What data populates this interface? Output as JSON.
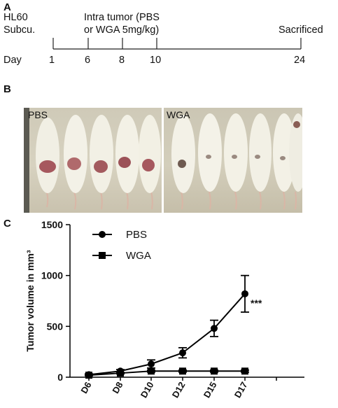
{
  "panel_a": {
    "letter": "A",
    "cell_line": "HL60",
    "route": "Subcu.",
    "treatment_line1": "Intra tumor (PBS",
    "treatment_line2": "or WGA 5mg/kg)",
    "day_label": "Day",
    "endpoint": "Sacrificed",
    "ticks": [
      "1",
      "6",
      "8",
      "10",
      "24"
    ]
  },
  "panel_b": {
    "letter": "B",
    "left_label": "PBS",
    "right_label": "WGA",
    "mice_per_group": 5,
    "tumor_colors": {
      "pbs": "#a6585e",
      "wga": "#6e5a50"
    }
  },
  "panel_c": {
    "letter": "C",
    "significance": "***"
  },
  "chart_data": {
    "type": "line",
    "title": "",
    "xlabel": "",
    "ylabel": "Tumor volume in mm³",
    "categories": [
      "D6",
      "D8",
      "D10",
      "D12",
      "D15",
      "D17"
    ],
    "ylim": [
      0,
      1500
    ],
    "yticks": [
      "0",
      "500",
      "1000",
      "1500"
    ],
    "legend": "top-left",
    "series": [
      {
        "name": "PBS",
        "marker": "circle",
        "values": [
          25,
          60,
          130,
          240,
          480,
          820
        ],
        "errors": [
          8,
          15,
          40,
          50,
          80,
          180
        ]
      },
      {
        "name": "WGA",
        "marker": "square",
        "values": [
          20,
          40,
          60,
          60,
          60,
          60
        ],
        "errors": [
          5,
          8,
          10,
          10,
          10,
          10
        ]
      }
    ]
  }
}
